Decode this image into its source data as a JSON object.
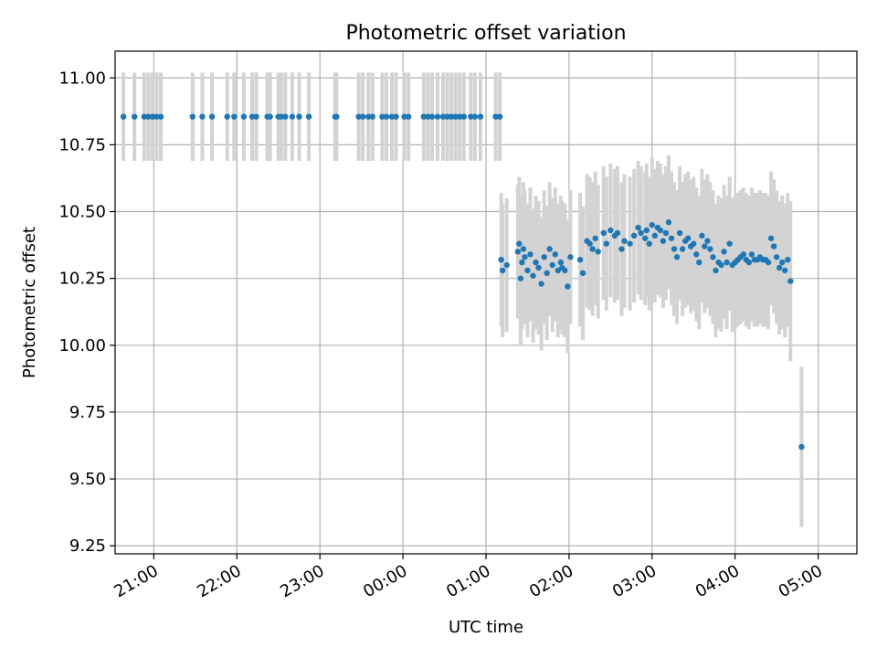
{
  "chart_data": {
    "type": "scatter",
    "title": "Photometric offset variation",
    "xlabel": "UTC time",
    "ylabel": "Photometric offset",
    "x_ticks": [
      "21:00",
      "22:00",
      "23:00",
      "00:00",
      "01:00",
      "02:00",
      "03:00",
      "04:00",
      "05:00"
    ],
    "y_ticks": [
      "9.25",
      "9.50",
      "9.75",
      "10.00",
      "10.25",
      "10.50",
      "10.75",
      "11.00"
    ],
    "xlim": [
      "20:32",
      "05:28"
    ],
    "ylim": [
      9.22,
      11.1
    ],
    "grid": true,
    "legend": "none",
    "colors": {
      "points": "#1f77b4",
      "errorbars": "#d3d3d3"
    },
    "series": [
      {
        "x": [
          "20:38",
          "20:46",
          "20:53",
          "20:56",
          "20:59",
          "21:02",
          "21:05",
          "21:28",
          "21:35",
          "21:42",
          "21:53",
          "21:58",
          "22:05",
          "22:11",
          "22:14",
          "22:22",
          "22:24",
          "22:30",
          "22:32",
          "22:35",
          "22:40",
          "22:45",
          "22:52",
          "23:11",
          "23:12",
          "23:28",
          "23:31",
          "23:35",
          "23:38",
          "23:45",
          "23:48",
          "23:52",
          "23:55",
          "00:01",
          "00:04",
          "00:15",
          "00:18",
          "00:21",
          "00:25",
          "00:29",
          "00:32",
          "00:35",
          "00:38",
          "00:41",
          "00:44",
          "00:49",
          "00:52",
          "00:56",
          "01:07",
          "01:10"
        ],
        "y": [
          10.855,
          10.855,
          10.855,
          10.855,
          10.855,
          10.855,
          10.855,
          10.855,
          10.855,
          10.855,
          10.855,
          10.855,
          10.855,
          10.855,
          10.855,
          10.855,
          10.855,
          10.855,
          10.855,
          10.855,
          10.855,
          10.855,
          10.855,
          10.855,
          10.855,
          10.855,
          10.855,
          10.855,
          10.855,
          10.855,
          10.855,
          10.855,
          10.855,
          10.855,
          10.855,
          10.855,
          10.855,
          10.855,
          10.855,
          10.855,
          10.855,
          10.855,
          10.855,
          10.855,
          10.855,
          10.855,
          10.855,
          10.855,
          10.855,
          10.855
        ],
        "yerr": 0.165
      },
      {
        "x": [
          "01:11",
          "01:12",
          "01:15",
          "01:23",
          "01:24",
          "01:25",
          "01:26",
          "01:27",
          "01:28",
          "01:30",
          "01:32",
          "01:34",
          "01:36",
          "01:38",
          "01:40",
          "01:42",
          "01:44",
          "01:46",
          "01:48",
          "01:50",
          "01:52",
          "01:54",
          "01:55",
          "01:57",
          "01:59",
          "02:01",
          "02:08",
          "02:10",
          "02:13",
          "02:15",
          "02:17",
          "02:19",
          "02:21",
          "02:25",
          "02:27",
          "02:30",
          "02:33",
          "02:35",
          "02:38",
          "02:40",
          "02:44",
          "02:47",
          "02:50",
          "02:52",
          "02:55",
          "02:56",
          "02:58",
          "03:00",
          "03:02",
          "03:04",
          "03:06",
          "03:08",
          "03:10",
          "03:12",
          "03:14",
          "03:16",
          "03:18",
          "03:20",
          "03:22",
          "03:24",
          "03:26",
          "03:28",
          "03:30",
          "03:32",
          "03:34",
          "03:36",
          "03:38",
          "03:40",
          "03:42",
          "03:44",
          "03:46",
          "03:48",
          "03:50",
          "03:52",
          "03:54",
          "03:56",
          "03:58",
          "04:00",
          "04:02",
          "04:04",
          "04:06",
          "04:08",
          "04:10",
          "04:12",
          "04:14",
          "04:16",
          "04:18",
          "04:20",
          "04:22",
          "04:24",
          "04:26",
          "04:28",
          "04:30",
          "04:32",
          "04:34",
          "04:36",
          "04:38"
        ],
        "y": [
          10.32,
          10.28,
          10.3,
          10.35,
          10.38,
          10.25,
          10.31,
          10.36,
          10.33,
          10.28,
          10.34,
          10.26,
          10.31,
          10.29,
          10.23,
          10.33,
          10.27,
          10.36,
          10.3,
          10.34,
          10.28,
          10.31,
          10.29,
          10.28,
          10.22,
          10.33,
          10.32,
          10.27,
          10.39,
          10.38,
          10.36,
          10.4,
          10.35,
          10.42,
          10.38,
          10.43,
          10.41,
          10.42,
          10.36,
          10.39,
          10.38,
          10.41,
          10.44,
          10.42,
          10.4,
          10.43,
          10.38,
          10.45,
          10.41,
          10.44,
          10.43,
          10.39,
          10.42,
          10.46,
          10.4,
          10.36,
          10.33,
          10.42,
          10.36,
          10.39,
          10.4,
          10.37,
          10.38,
          10.34,
          10.31,
          10.41,
          10.37,
          10.39,
          10.36,
          10.33,
          10.28,
          10.31,
          10.3,
          10.35,
          10.31,
          10.38,
          10.3,
          10.31,
          10.32,
          10.33,
          10.34,
          10.32,
          10.31,
          10.34,
          10.32,
          10.32,
          10.33,
          10.32,
          10.32,
          10.31,
          10.4,
          10.37,
          10.33,
          10.29,
          10.31,
          10.28,
          10.32
        ],
        "yerr": 0.25
      },
      {
        "x": [
          "04:40",
          "04:48"
        ],
        "y": [
          10.24,
          9.62
        ],
        "yerr": 0.3
      }
    ]
  }
}
